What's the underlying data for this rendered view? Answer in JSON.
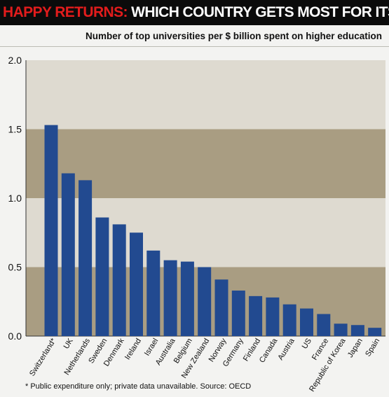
{
  "header": {
    "title_highlight": "HAPPY RETURNS:",
    "title_rest": "WHICH COUNTRY GETS MOST FOR ITS DOLLAR",
    "subtitle": "Number of top universities per $ billion spent on higher education"
  },
  "footnote": "* Public expenditure only; private data unavailable. Source: OECD",
  "colors": {
    "bar": "#224a90",
    "band_light": "#dedad0",
    "band_dark": "#a99d82",
    "title_accent": "#e21c1c"
  },
  "chart_data": {
    "type": "bar",
    "title": "Number of top universities per $ billion spent on higher education",
    "xlabel": "",
    "ylabel": "",
    "ylim": [
      0,
      2.0
    ],
    "yticks": [
      "0.0",
      "0.5",
      "1.0",
      "1.5",
      "2.0"
    ],
    "categories": [
      "Switzerland*",
      "UK",
      "Netherlands",
      "Sweden",
      "Denmark",
      "Ireland",
      "Israel",
      "Australia",
      "Belgium",
      "New Zealand",
      "Norway",
      "Germany",
      "Finland",
      "Canada",
      "Austria",
      "US",
      "France",
      "Republic of Korea",
      "Japan",
      "Spain"
    ],
    "values": [
      1.53,
      1.18,
      1.13,
      0.86,
      0.81,
      0.75,
      0.62,
      0.55,
      0.54,
      0.5,
      0.41,
      0.33,
      0.29,
      0.28,
      0.23,
      0.2,
      0.16,
      0.09,
      0.08,
      0.06
    ],
    "grid": false,
    "legend": "none"
  }
}
